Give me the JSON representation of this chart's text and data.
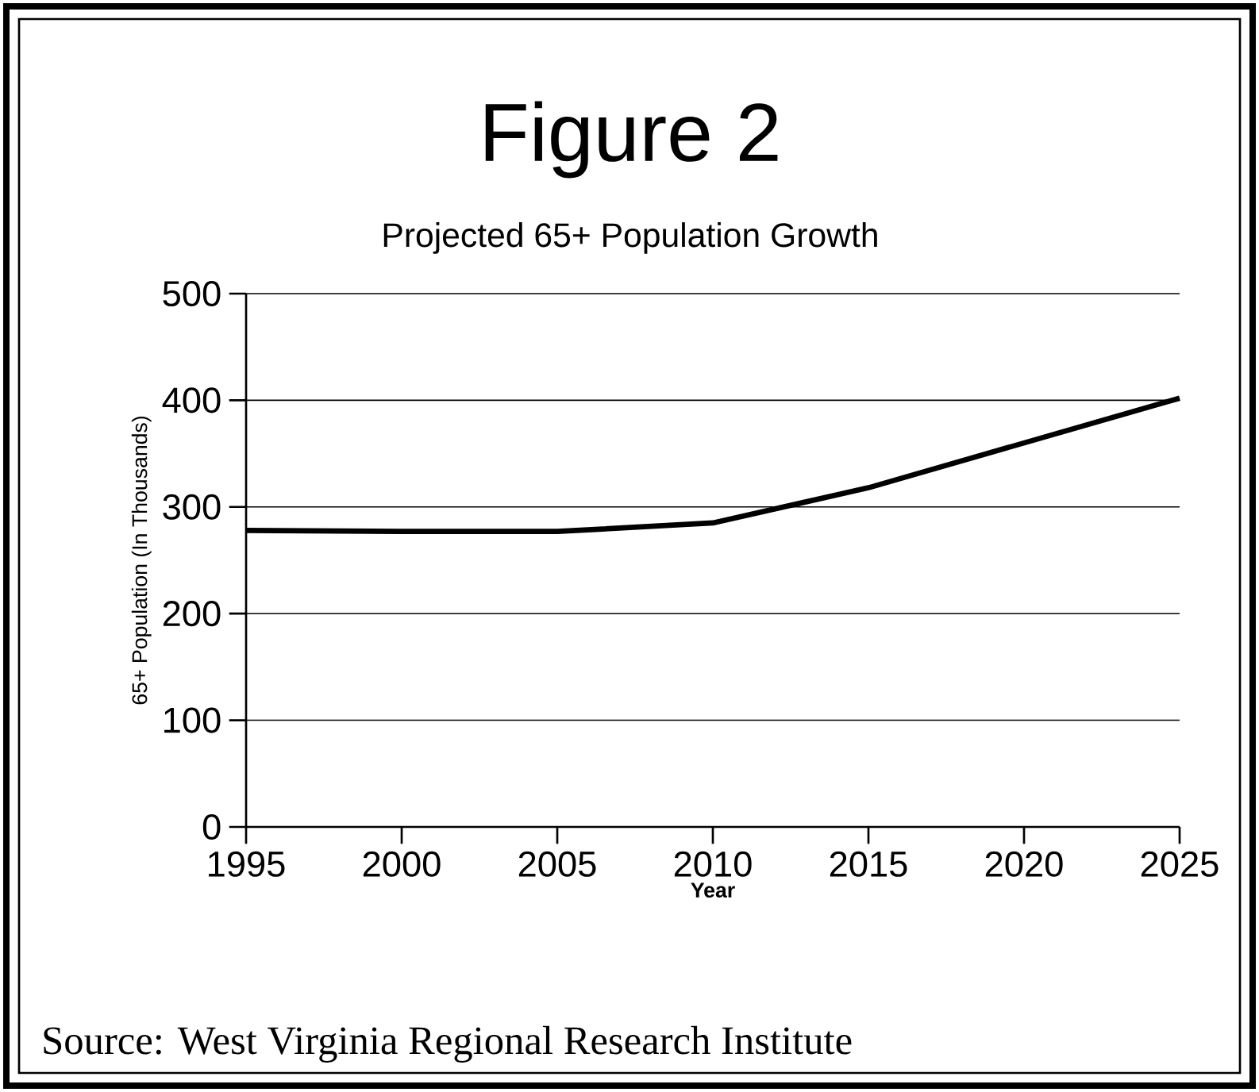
{
  "chart_data": {
    "type": "line",
    "title": "Figure 2",
    "subtitle": "Projected 65+ Population Growth",
    "xlabel": "Year",
    "ylabel": "65+ Population (In Thousands)",
    "x": [
      1995,
      2000,
      2005,
      2010,
      2015,
      2020,
      2025
    ],
    "series": [
      {
        "color": "#000000",
        "values": [
          278,
          277,
          277,
          285,
          318,
          360,
          402
        ]
      }
    ],
    "xlim": [
      1995,
      2025
    ],
    "xticks": [
      1995,
      2000,
      2005,
      2010,
      2015,
      2020,
      2025
    ],
    "ylim": [
      0,
      500
    ],
    "yticks": [
      0,
      100,
      200,
      300,
      400,
      500
    ],
    "grid": "y",
    "marker": "none",
    "line_style": "solid",
    "annotations": [
      "Source: West Virginia Regional Research Institute"
    ]
  }
}
